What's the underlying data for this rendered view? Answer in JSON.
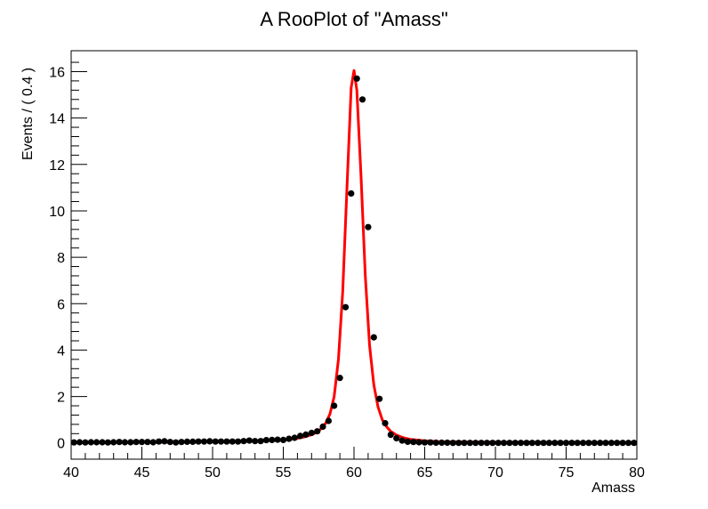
{
  "chart_data": {
    "type": "scatter",
    "title": "A RooPlot of \"Amass\"",
    "xlabel": "Amass",
    "ylabel": "Events / ( 0.4 )",
    "xlim": [
      40,
      80
    ],
    "ylim": [
      -0.7,
      16.9
    ],
    "x_ticks": [
      40,
      45,
      50,
      55,
      60,
      65,
      70,
      75,
      80
    ],
    "y_ticks": [
      0,
      2,
      4,
      6,
      8,
      10,
      12,
      14,
      16
    ],
    "grid": false,
    "legend": "none",
    "colors": {
      "data": "#000000",
      "fit": "#ff0000"
    },
    "series": [
      {
        "kind": "data-points",
        "x": [
          40.2,
          40.6,
          41.0,
          41.4,
          41.8,
          42.2,
          42.6,
          43.0,
          43.4,
          43.8,
          44.2,
          44.6,
          45.0,
          45.4,
          45.8,
          46.2,
          46.6,
          47.0,
          47.4,
          47.8,
          48.2,
          48.6,
          49.0,
          49.4,
          49.8,
          50.2,
          50.6,
          51.0,
          51.4,
          51.8,
          52.2,
          52.6,
          53.0,
          53.4,
          53.8,
          54.2,
          54.6,
          55.0,
          55.4,
          55.8,
          56.2,
          56.6,
          57.0,
          57.4,
          57.8,
          58.2,
          58.6,
          59.0,
          59.4,
          59.8,
          60.2,
          60.6,
          61.0,
          61.4,
          61.8,
          62.2,
          62.6,
          63.0,
          63.4,
          63.8,
          64.2,
          64.6,
          65.0,
          65.4,
          65.8,
          66.2,
          66.6,
          67.0,
          67.4,
          67.8,
          68.2,
          68.6,
          69.0,
          69.4,
          69.8,
          70.2,
          70.6,
          71.0,
          71.4,
          71.8,
          72.2,
          72.6,
          73.0,
          73.4,
          73.8,
          74.2,
          74.6,
          75.0,
          75.4,
          75.8,
          76.2,
          76.6,
          77.0,
          77.4,
          77.8,
          78.2,
          78.6,
          79.0,
          79.4,
          79.8
        ],
        "y": [
          0.02,
          0.03,
          0.02,
          0.03,
          0.03,
          0.03,
          0.02,
          0.03,
          0.04,
          0.03,
          0.03,
          0.04,
          0.04,
          0.04,
          0.03,
          0.06,
          0.07,
          0.04,
          0.02,
          0.04,
          0.05,
          0.05,
          0.06,
          0.06,
          0.07,
          0.06,
          0.06,
          0.06,
          0.06,
          0.06,
          0.08,
          0.1,
          0.08,
          0.08,
          0.12,
          0.13,
          0.14,
          0.13,
          0.18,
          0.22,
          0.3,
          0.36,
          0.43,
          0.5,
          0.7,
          0.95,
          1.6,
          2.8,
          5.85,
          10.75,
          15.7,
          14.8,
          9.3,
          4.55,
          1.9,
          0.85,
          0.35,
          0.2,
          0.1,
          0.05,
          0.04,
          0.03,
          0.02,
          0.02,
          0.01,
          0.01,
          0.01,
          0.0,
          0.0,
          0.0,
          0.0,
          0.0,
          0.0,
          0.0,
          0.0,
          0.0,
          0.0,
          0.0,
          0.0,
          0.0,
          0.0,
          0.0,
          0.0,
          0.0,
          0.0,
          0.0,
          0.0,
          0.0,
          0.0,
          0.0,
          0.0,
          0.0,
          0.0,
          0.0,
          0.0,
          0.0,
          0.0,
          0.0,
          0.0,
          0.0
        ]
      },
      {
        "kind": "fit-curve",
        "x": [
          40,
          42,
          44,
          46,
          48,
          50,
          52,
          53,
          54,
          55,
          55.5,
          56,
          56.5,
          57,
          57.5,
          58,
          58.3,
          58.6,
          58.9,
          59.2,
          59.5,
          59.8,
          60.0,
          60.2,
          60.5,
          60.8,
          61.1,
          61.4,
          61.7,
          62.0,
          62.3,
          62.6,
          63.0,
          63.5,
          64,
          65,
          66,
          68,
          70,
          74,
          80
        ],
        "y": [
          0.02,
          0.02,
          0.03,
          0.03,
          0.04,
          0.05,
          0.07,
          0.08,
          0.1,
          0.13,
          0.16,
          0.2,
          0.26,
          0.35,
          0.5,
          0.85,
          1.25,
          2.0,
          3.6,
          6.5,
          11.0,
          15.3,
          16.05,
          15.2,
          11.5,
          7.2,
          4.2,
          2.5,
          1.55,
          1.0,
          0.7,
          0.5,
          0.34,
          0.22,
          0.15,
          0.09,
          0.06,
          0.04,
          0.03,
          0.02,
          0.01
        ]
      }
    ]
  }
}
